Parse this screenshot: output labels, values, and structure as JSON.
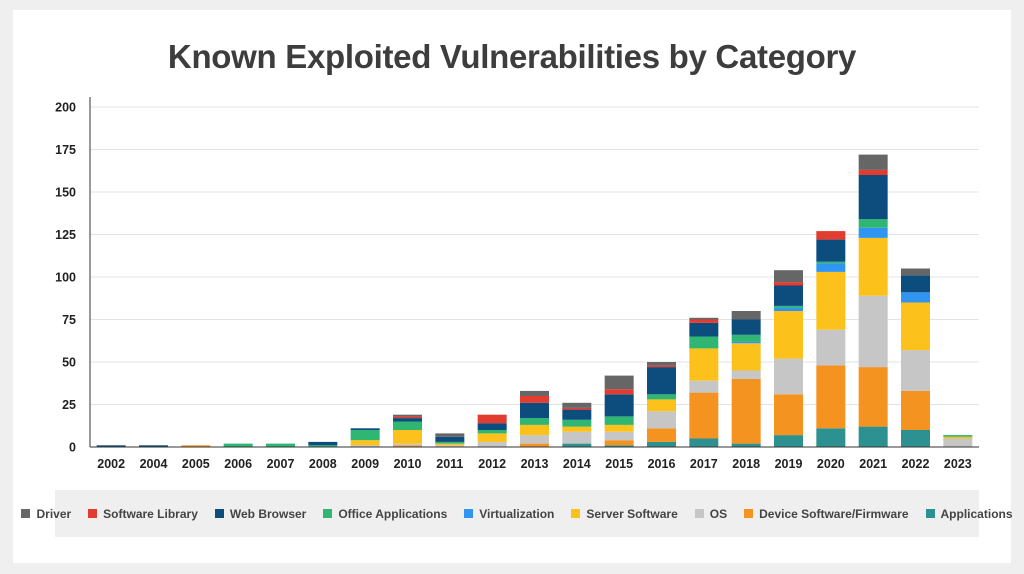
{
  "chart_data": {
    "type": "bar",
    "stacked": true,
    "title": "Known Exploited Vulnerabilities by Category",
    "xlabel": "",
    "ylabel": "",
    "ylim": [
      0,
      200
    ],
    "yticks": [
      0,
      25,
      50,
      75,
      100,
      125,
      150,
      175,
      200
    ],
    "grid": true,
    "legend_position": "bottom",
    "categories": [
      "2002",
      "2004",
      "2005",
      "2006",
      "2007",
      "2008",
      "2009",
      "2010",
      "2011",
      "2012",
      "2013",
      "2014",
      "2015",
      "2016",
      "2017",
      "2018",
      "2019",
      "2020",
      "2021",
      "2022",
      "2023"
    ],
    "series": [
      {
        "name": "Applications",
        "color": "#2e9191",
        "values": [
          0,
          0,
          0,
          0,
          0,
          0,
          0,
          0,
          0,
          0,
          0,
          2,
          1,
          3,
          5,
          2,
          7,
          11,
          12,
          10,
          0
        ]
      },
      {
        "name": "Device Software/Firmware",
        "color": "#f49320",
        "values": [
          0,
          0,
          1,
          0,
          0,
          0,
          0,
          1,
          0,
          0,
          2,
          0,
          3,
          8,
          27,
          38,
          24,
          37,
          35,
          23,
          0
        ]
      },
      {
        "name": "OS",
        "color": "#c6c6c6",
        "values": [
          0,
          0,
          0,
          0,
          0,
          0,
          1,
          1,
          1,
          3,
          5,
          7,
          5,
          10,
          7,
          5,
          21,
          21,
          42,
          24,
          5
        ]
      },
      {
        "name": "Server Software",
        "color": "#fcc21b",
        "values": [
          0,
          0,
          0,
          0,
          0,
          0,
          3,
          8,
          1,
          5,
          6,
          3,
          4,
          7,
          19,
          16,
          28,
          34,
          34,
          28,
          1
        ]
      },
      {
        "name": "Virtualization",
        "color": "#2f95f1",
        "values": [
          0,
          0,
          0,
          0,
          0,
          0,
          0,
          0,
          0,
          0,
          0,
          0,
          0,
          0,
          0,
          1,
          2,
          5,
          6,
          6,
          0
        ]
      },
      {
        "name": "Office Applications",
        "color": "#2fb673",
        "values": [
          0,
          0,
          0,
          2,
          2,
          1,
          6,
          5,
          1,
          2,
          4,
          4,
          5,
          3,
          7,
          4,
          1,
          1,
          5,
          0,
          1
        ]
      },
      {
        "name": "Web Browser",
        "color": "#0c4d7e",
        "values": [
          1,
          1,
          0,
          0,
          0,
          2,
          1,
          2,
          3,
          4,
          9,
          6,
          13,
          16,
          8,
          9,
          12,
          13,
          26,
          10,
          0
        ]
      },
      {
        "name": "Software Library",
        "color": "#e23b30",
        "values": [
          0,
          0,
          0,
          0,
          0,
          0,
          0,
          1,
          0,
          5,
          4,
          1,
          3,
          1,
          2,
          0,
          2,
          5,
          3,
          0,
          0
        ]
      },
      {
        "name": "Driver",
        "color": "#666666",
        "values": [
          0,
          0,
          0,
          0,
          0,
          0,
          0,
          1,
          2,
          0,
          3,
          3,
          8,
          2,
          1,
          5,
          7,
          0,
          9,
          4,
          0
        ]
      }
    ],
    "legend_order": [
      "Driver",
      "Software Library",
      "Web Browser",
      "Office Applications",
      "Virtualization",
      "Server Software",
      "OS",
      "Device Software/Firmware",
      "Applications"
    ]
  }
}
